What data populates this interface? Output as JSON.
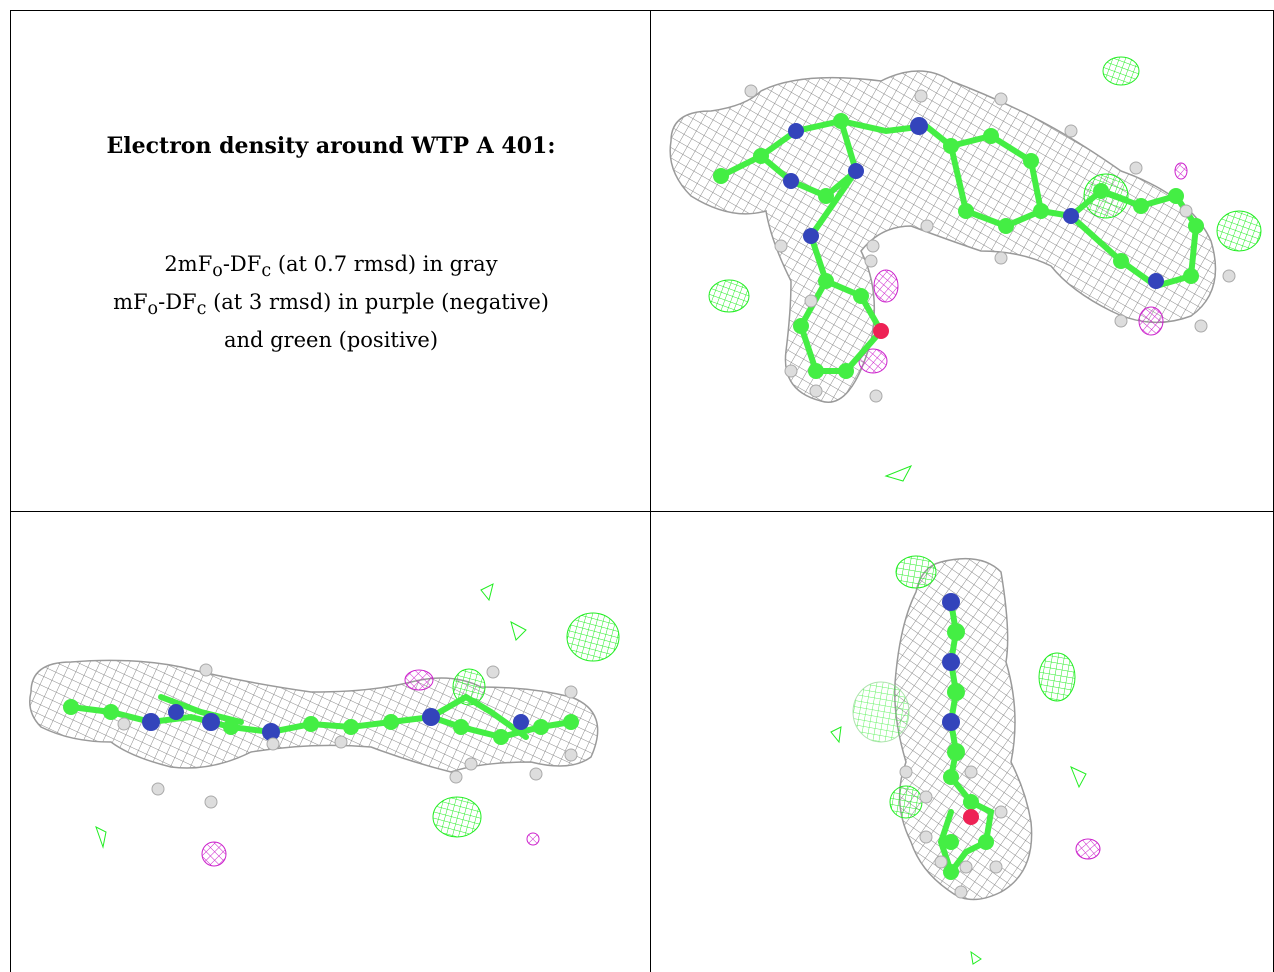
{
  "caption": {
    "title": "Electron density around WTP A 401:",
    "line1": "2mFo-DFc (at 0.7 rmsd) in gray",
    "line2": "mFo-DFc (at 3 rmsd) in purple (negative)",
    "line3": "and green (positive)"
  },
  "colors": {
    "density_2fofc": "#9a9a9a",
    "diff_positive": "#22ee22",
    "diff_negative": "#cc22cc",
    "carbon": "#44ee44",
    "nitrogen": "#3344bb",
    "oxygen": "#ee2255",
    "hydrogen": "#dddddd"
  },
  "panels": [
    {
      "view": "top view"
    },
    {
      "view": "side view"
    },
    {
      "view": "end view"
    }
  ]
}
